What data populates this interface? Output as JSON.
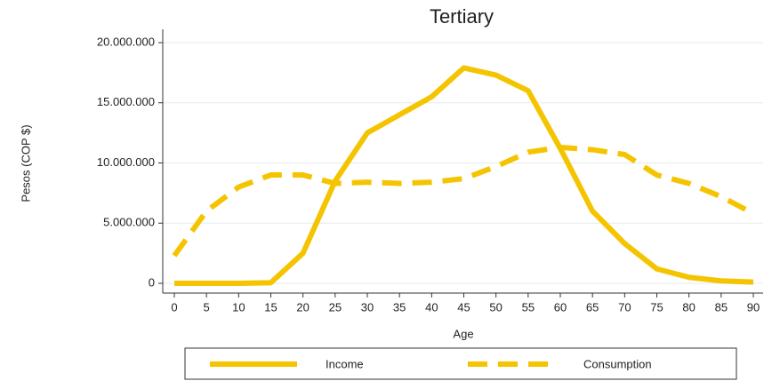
{
  "chart_data": {
    "type": "line",
    "title": "Tertiary",
    "x_label": "Age",
    "y_label": "Pesos (COP $)",
    "x": [
      0,
      5,
      10,
      15,
      20,
      25,
      30,
      35,
      40,
      45,
      50,
      55,
      60,
      65,
      70,
      75,
      80,
      85,
      90
    ],
    "series": [
      {
        "name": "Income",
        "color": "#f5c400",
        "dash": false,
        "values": [
          0,
          0,
          0,
          50000,
          2500000,
          8500000,
          12500000,
          14000000,
          15500000,
          17900000,
          17300000,
          16000000,
          11200000,
          6000000,
          3300000,
          1200000,
          500000,
          200000,
          100000
        ]
      },
      {
        "name": "Consumption",
        "color": "#f5c400",
        "dash": true,
        "values": [
          2300000,
          6000000,
          8000000,
          9000000,
          9000000,
          8300000,
          8400000,
          8300000,
          8400000,
          8700000,
          9700000,
          10900000,
          11300000,
          11100000,
          10700000,
          9000000,
          8300000,
          7200000,
          5800000
        ]
      }
    ],
    "xlim": [
      0,
      90
    ],
    "xticks": [
      0,
      5,
      10,
      15,
      20,
      25,
      30,
      35,
      40,
      45,
      50,
      55,
      60,
      65,
      70,
      75,
      80,
      85,
      90
    ],
    "ylim": [
      0,
      20000000
    ],
    "yticks": [
      0,
      {
        "value": 5000000,
        "label": "5.000.000"
      },
      {
        "value": 10000000,
        "label": "10.000.000"
      },
      {
        "value": 15000000,
        "label": "15.000.000"
      },
      {
        "value": 20000000,
        "label": "20.000.000"
      }
    ],
    "grid": true
  }
}
